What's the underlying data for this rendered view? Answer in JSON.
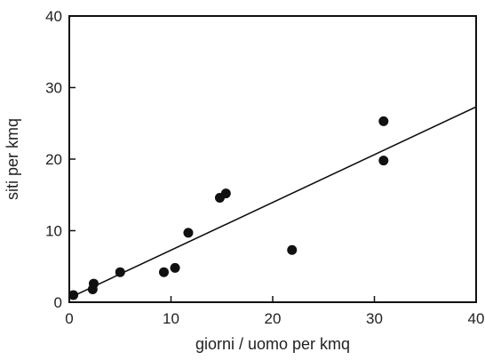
{
  "chart_data": {
    "type": "scatter",
    "title": "",
    "xlabel": "giorni / uomo per kmq",
    "ylabel": "siti per kmq",
    "xlim": [
      0,
      40
    ],
    "ylim": [
      0,
      40
    ],
    "x_ticks": [
      0,
      10,
      20,
      30,
      40
    ],
    "y_ticks": [
      0,
      10,
      20,
      30,
      40
    ],
    "grid": false,
    "legend": "none",
    "series": [
      {
        "points": [
          {
            "x": 0.4,
            "y": 1.0
          },
          {
            "x": 2.3,
            "y": 1.8
          },
          {
            "x": 2.4,
            "y": 2.6
          },
          {
            "x": 5.0,
            "y": 4.2
          },
          {
            "x": 9.3,
            "y": 4.2
          },
          {
            "x": 10.4,
            "y": 4.8
          },
          {
            "x": 11.7,
            "y": 9.7
          },
          {
            "x": 14.8,
            "y": 14.6
          },
          {
            "x": 15.4,
            "y": 15.2
          },
          {
            "x": 21.9,
            "y": 7.3
          },
          {
            "x": 30.9,
            "y": 25.3
          },
          {
            "x": 30.9,
            "y": 19.8
          }
        ]
      }
    ],
    "trendline": {
      "x": [
        0,
        40
      ],
      "y": [
        0.6,
        27.3
      ]
    },
    "colors": {
      "points": "#111111",
      "line": "#111111",
      "axes": "#111111"
    }
  }
}
